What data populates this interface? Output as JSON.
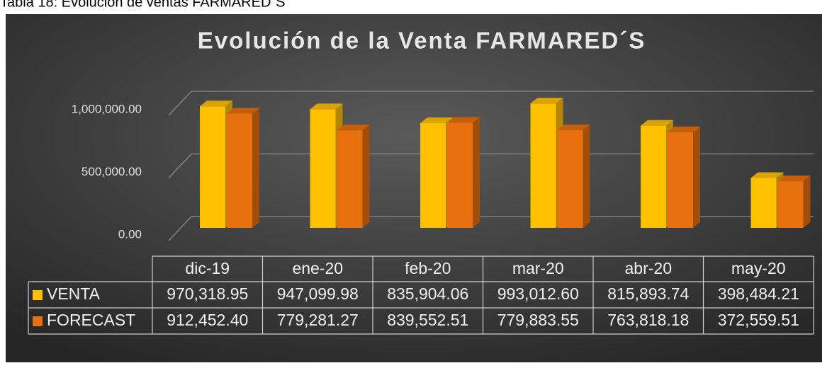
{
  "caption": "Tabla 18: Evolución de ventas FARMARED´S",
  "chart_data": {
    "type": "bar",
    "title": "Evolución de la Venta FARMARED´S",
    "categories": [
      "dic-19",
      "ene-20",
      "feb-20",
      "mar-20",
      "abr-20",
      "may-20"
    ],
    "series": [
      {
        "name": "VENTA",
        "color": "#FFC000",
        "values": [
          970318.95,
          947099.98,
          835904.06,
          993012.6,
          815893.74,
          398484.21
        ],
        "value_labels": [
          "970,318.95",
          "947,099.98",
          "835,904.06",
          "993,012.60",
          "815,893.74",
          "398,484.21"
        ]
      },
      {
        "name": "FORECAST",
        "color": "#E8700F",
        "values": [
          912452.4,
          779281.27,
          839552.51,
          779883.55,
          763818.18,
          372559.51
        ],
        "value_labels": [
          "912,452.40",
          "779,281.27",
          "839,552.51",
          "779,883.55",
          "763,818.18",
          "372,559.51"
        ]
      }
    ],
    "ylim": [
      0,
      1000000
    ],
    "yticks": [
      {
        "value": 0,
        "label": "0.00"
      },
      {
        "value": 500000,
        "label": "500,000.00"
      },
      {
        "value": 1000000,
        "label": "1,000,000.00"
      }
    ],
    "grid": true,
    "legend": "table"
  }
}
